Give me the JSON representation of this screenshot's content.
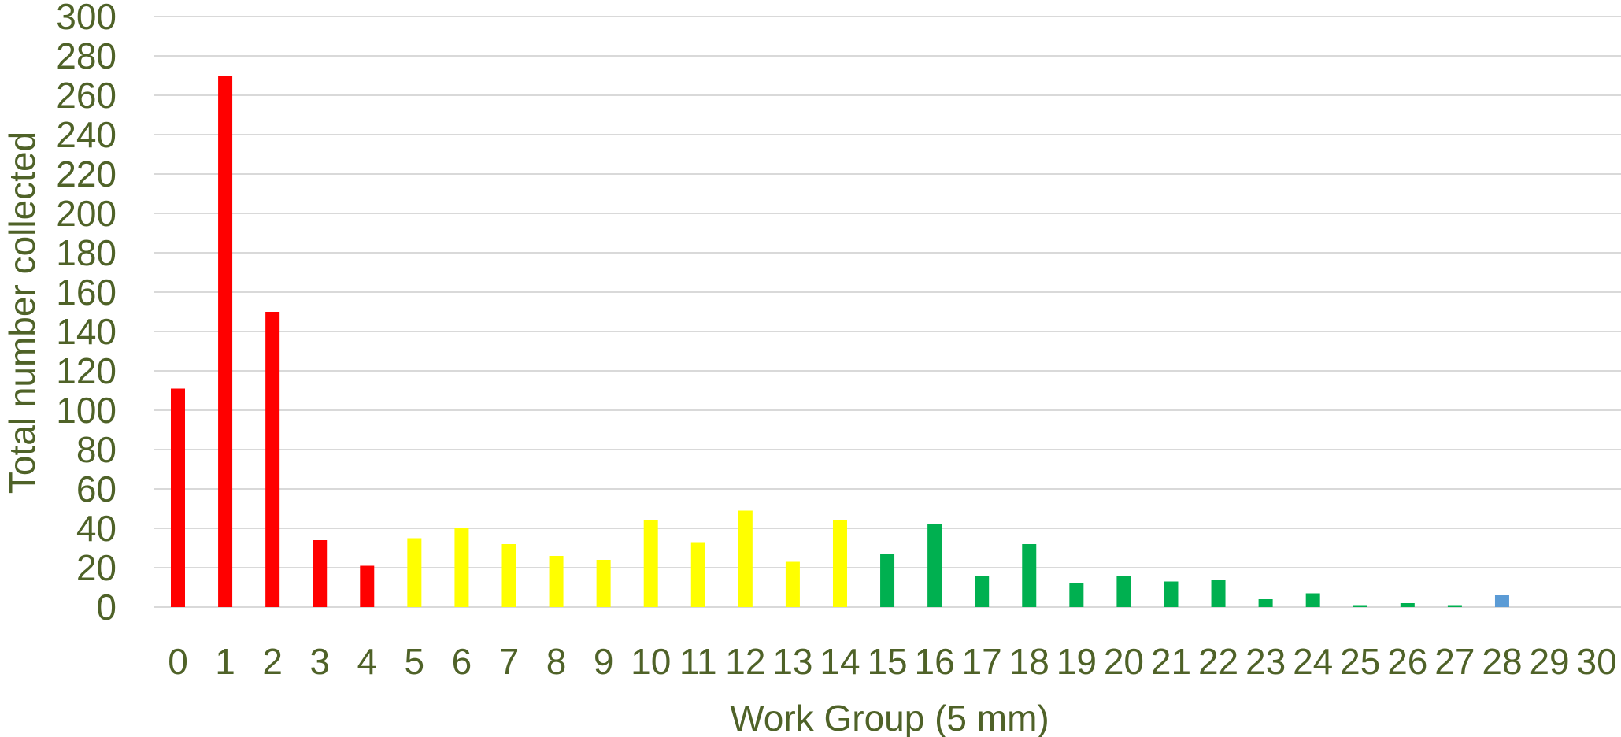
{
  "chart_data": {
    "type": "bar",
    "title": "",
    "xlabel": "Work Group (5 mm)",
    "ylabel": "Total number collected",
    "ylim": [
      0,
      300
    ],
    "yticks": [
      0,
      20,
      40,
      60,
      80,
      100,
      120,
      140,
      160,
      180,
      200,
      220,
      240,
      260,
      280,
      300
    ],
    "grid": true,
    "legend": "none",
    "categories": [
      "0",
      "1",
      "2",
      "3",
      "4",
      "5",
      "6",
      "7",
      "8",
      "9",
      "10",
      "11",
      "12",
      "13",
      "14",
      "15",
      "16",
      "17",
      "18",
      "19",
      "20",
      "21",
      "22",
      "23",
      "24",
      "25",
      "26",
      "27",
      "28",
      "29",
      "30"
    ],
    "values": [
      111,
      270,
      150,
      34,
      21,
      35,
      40,
      32,
      26,
      24,
      44,
      33,
      49,
      23,
      44,
      27,
      42,
      16,
      32,
      12,
      16,
      13,
      14,
      4,
      7,
      1,
      2,
      1,
      6,
      0,
      0
    ],
    "bar_colors": [
      "#ff0000",
      "#ff0000",
      "#ff0000",
      "#ff0000",
      "#ff0000",
      "#ffff00",
      "#ffff00",
      "#ffff00",
      "#ffff00",
      "#ffff00",
      "#ffff00",
      "#ffff00",
      "#ffff00",
      "#ffff00",
      "#ffff00",
      "#00b050",
      "#00b050",
      "#00b050",
      "#00b050",
      "#00b050",
      "#00b050",
      "#00b050",
      "#00b050",
      "#00b050",
      "#00b050",
      "#00b050",
      "#00b050",
      "#00b050",
      "#5b9bd5",
      "#5b9bd5",
      "#5b9bd5"
    ],
    "text_color": "#4f6228",
    "grid_color": "#d9d9d9"
  }
}
